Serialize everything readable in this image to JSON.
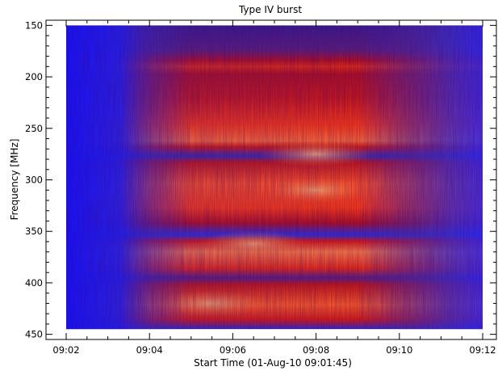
{
  "chart_data": {
    "type": "heatmap",
    "title": "Type IV burst",
    "xlabel": "Start Time (01-Aug-10 09:01:45)",
    "ylabel": "Frequency [MHz]",
    "xlim": [
      "09:02",
      "09:12"
    ],
    "ylim": [
      455,
      145
    ],
    "y_inverted": true,
    "data_extent": {
      "x": [
        "09:02",
        "09:12"
      ],
      "y": [
        150,
        445
      ]
    },
    "xticks": [
      "09:02",
      "09:04",
      "09:06",
      "09:08",
      "09:10",
      "09:12"
    ],
    "yticks": [
      150,
      200,
      250,
      300,
      350,
      400,
      450
    ],
    "colormap": [
      "#1a1aff",
      "#5a2ba0",
      "#b0102a",
      "#ff2a00",
      "#ff7a3a"
    ],
    "intensity_peaks": [
      {
        "time": "09:08",
        "frequency": 275
      },
      {
        "time": "09:08",
        "frequency": 310
      },
      {
        "time": "09:06:30",
        "frequency": 362
      },
      {
        "time": "09:05:30",
        "frequency": 420
      }
    ],
    "emission_bands": [
      {
        "freq_range": [
          178,
          192
        ],
        "time_range": [
          "09:04",
          "09:11"
        ]
      },
      {
        "freq_range": [
          255,
          290
        ],
        "time_range": [
          "09:05:30",
          "09:10"
        ]
      },
      {
        "freq_range": [
          292,
          345
        ],
        "time_range": [
          "09:04:30",
          "09:10"
        ]
      },
      {
        "freq_range": [
          352,
          392
        ],
        "time_range": [
          "09:02:30",
          "09:09:30"
        ]
      },
      {
        "freq_range": [
          402,
          445
        ],
        "time_range": [
          "09:03",
          "09:12"
        ]
      }
    ]
  }
}
